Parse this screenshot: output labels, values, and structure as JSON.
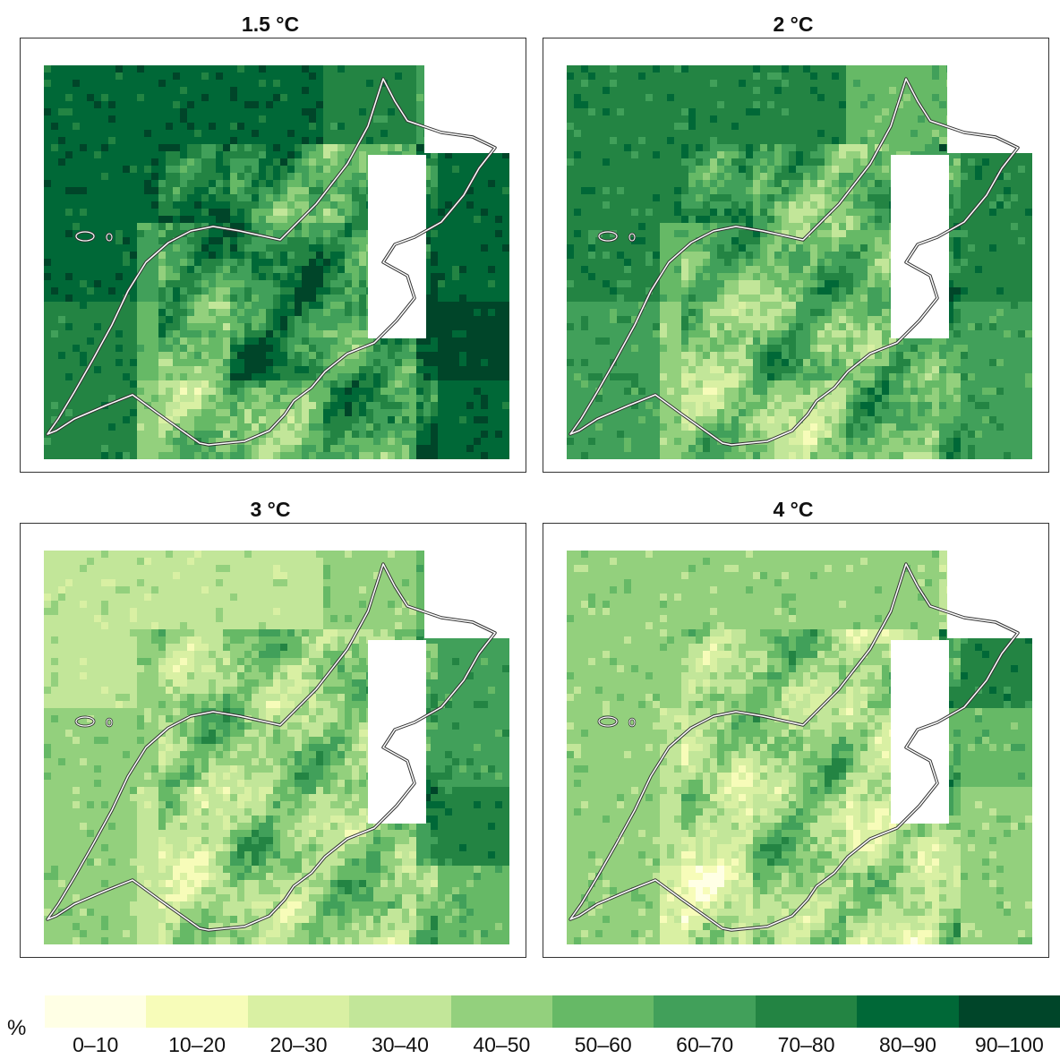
{
  "panels": [
    {
      "title": "1.5 °C",
      "scenario_level": 0
    },
    {
      "title": "2 °C",
      "scenario_level": 1
    },
    {
      "title": "3 °C",
      "scenario_level": 2
    },
    {
      "title": "4 °C",
      "scenario_level": 3
    }
  ],
  "legend": {
    "unit": "%",
    "classes": [
      {
        "label": "0–10",
        "color": "#ffffe5"
      },
      {
        "label": "10–20",
        "color": "#f7fcb9"
      },
      {
        "label": "20–30",
        "color": "#d9f0a3"
      },
      {
        "label": "30–40",
        "color": "#c2e699"
      },
      {
        "label": "40–50",
        "color": "#93d07d"
      },
      {
        "label": "50–60",
        "color": "#66b966"
      },
      {
        "label": "60–70",
        "color": "#41a05a"
      },
      {
        "label": "70–80",
        "color": "#238443"
      },
      {
        "label": "80–90",
        "color": "#006837"
      },
      {
        "label": "90–100",
        "color": "#004529"
      }
    ]
  },
  "map_style": {
    "border_color": "#ffffff",
    "border_outline": "#333333",
    "no_data_color": "#ffffff"
  }
}
